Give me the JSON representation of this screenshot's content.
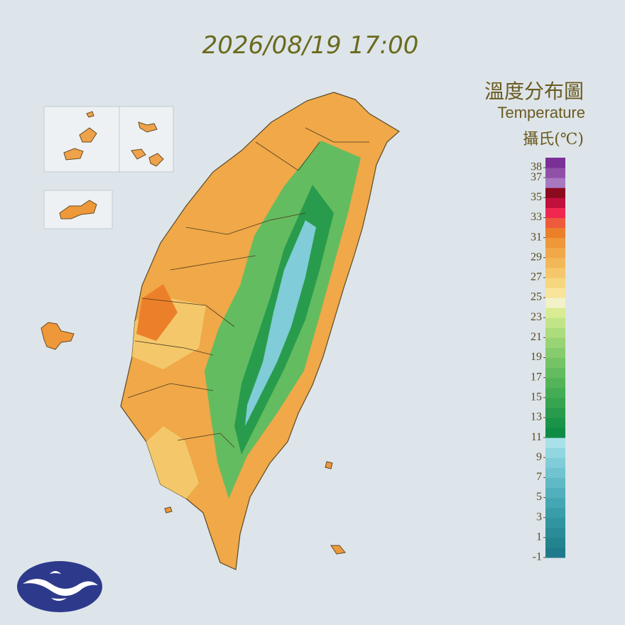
{
  "header": {
    "timestamp": "2026/08/19 17:00"
  },
  "legend": {
    "title": "溫度分布圖",
    "subtitle": "Temperature",
    "unit": "攝氏(℃)",
    "lim": [
      -1,
      39
    ],
    "ticks": [
      38,
      37,
      35,
      33,
      31,
      29,
      27,
      25,
      23,
      21,
      19,
      17,
      15,
      13,
      11,
      9,
      7,
      5,
      3,
      1,
      -1
    ],
    "colors": [
      "#1f7a8c",
      "#23838f",
      "#2a8c98",
      "#3195a0",
      "#3a9eaa",
      "#45a7b3",
      "#52b0bc",
      "#60bac6",
      "#70c4cf",
      "#80ccd8",
      "#92d6e0",
      "#a8e2e8",
      "#0e8c44",
      "#1a9448",
      "#289c4c",
      "#36a450",
      "#44ac54",
      "#54b45a",
      "#64bc60",
      "#74c466",
      "#86cc6c",
      "#98d474",
      "#acdc7c",
      "#c2e488",
      "#d8ec94",
      "#f2f2c8",
      "#f8e49a",
      "#f6d67e",
      "#f4c86a",
      "#f2b858",
      "#f0a848",
      "#ee983a",
      "#ec802a",
      "#ee5a3c",
      "#f02850",
      "#c0103c",
      "#8c0a1e",
      "#a878c0",
      "#9050a8",
      "#7a3096"
    ]
  }
}
